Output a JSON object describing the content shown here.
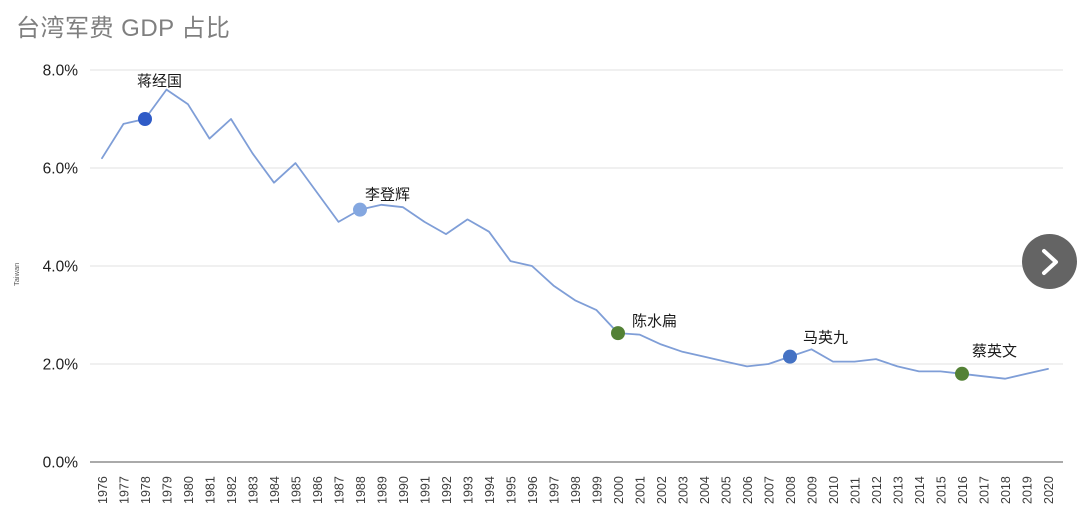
{
  "title": "台湾军费 GDP 占比",
  "nav": {
    "direction": "next"
  },
  "colors": {
    "series_line": "#7F9ED7",
    "grid_line": "#E7E7E7",
    "baseline": "#9E9E9E",
    "title_gray": "#7F7F7F",
    "axis_text": "#3d3d3d",
    "y_tick_text": "#1f1f1f",
    "annotation_text": "#1a1a1a",
    "nav_button_bg": "#646464",
    "nav_chevron": "#ffffff"
  },
  "chart_data": {
    "type": "line",
    "title": "台湾军费 GDP 占比",
    "xlabel": "",
    "ylabel": "Taiwan",
    "ylim": [
      0,
      8
    ],
    "grid": "horizontal",
    "legend": "none",
    "y_ticks": [
      {
        "value": 8,
        "label": "8.0%"
      },
      {
        "value": 6,
        "label": "6.0%"
      },
      {
        "value": 4,
        "label": "4.0%"
      },
      {
        "value": 2,
        "label": "2.0%"
      },
      {
        "value": 0,
        "label": "0.0%"
      }
    ],
    "x": [
      1976,
      1977,
      1978,
      1979,
      1980,
      1981,
      1982,
      1983,
      1984,
      1985,
      1986,
      1987,
      1988,
      1989,
      1990,
      1991,
      1992,
      1993,
      1994,
      1995,
      1996,
      1997,
      1998,
      1999,
      2000,
      2001,
      2002,
      2003,
      2004,
      2005,
      2006,
      2007,
      2008,
      2009,
      2010,
      2011,
      2012,
      2013,
      2014,
      2015,
      2016,
      2017,
      2018,
      2019,
      2020
    ],
    "values": [
      6.2,
      6.9,
      7.0,
      7.6,
      7.3,
      6.6,
      7.0,
      6.3,
      5.7,
      6.1,
      5.5,
      4.9,
      5.15,
      5.25,
      5.2,
      4.9,
      4.65,
      4.95,
      4.7,
      4.1,
      4.0,
      3.6,
      3.3,
      3.1,
      2.63,
      2.6,
      2.4,
      2.25,
      2.15,
      2.05,
      1.95,
      2.0,
      2.15,
      2.3,
      2.05,
      2.05,
      2.1,
      1.95,
      1.85,
      1.85,
      1.8,
      1.75,
      1.7,
      1.8,
      1.9
    ],
    "annotations": [
      {
        "year": 1978,
        "value": 7.0,
        "label": "蒋经国",
        "marker_color": "#2F5BC7"
      },
      {
        "year": 1988,
        "value": 5.15,
        "label": "李登辉",
        "marker_color": "#84A7E0"
      },
      {
        "year": 2000,
        "value": 2.63,
        "label": "陈水扁",
        "marker_color": "#538135"
      },
      {
        "year": 2008,
        "value": 2.15,
        "label": "马英九",
        "marker_color": "#4472C4"
      },
      {
        "year": 2016,
        "value": 1.8,
        "label": "蔡英文",
        "marker_color": "#538135"
      }
    ]
  }
}
